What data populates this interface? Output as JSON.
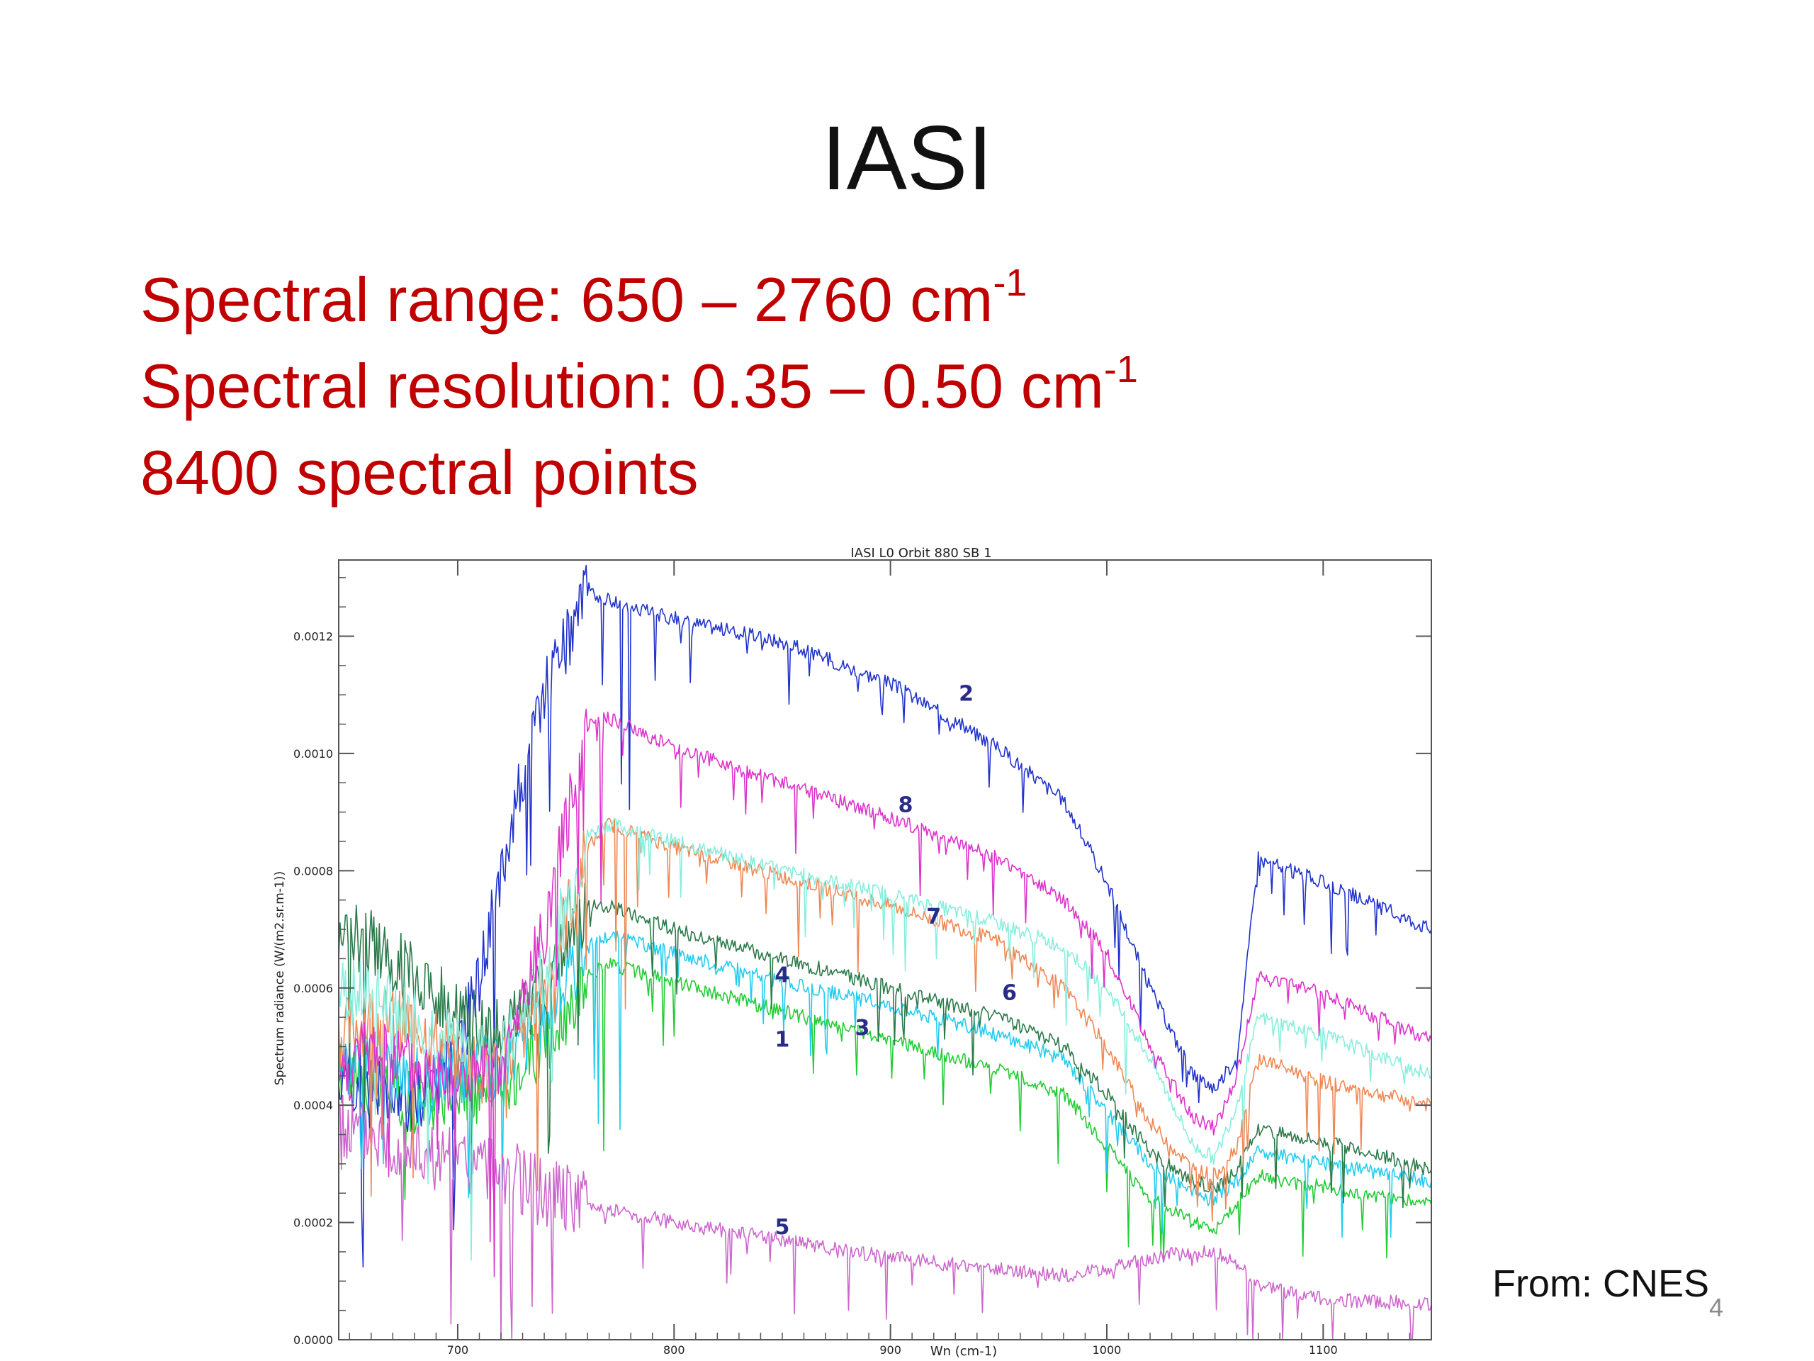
{
  "slide": {
    "title": "IASI",
    "bullets": [
      {
        "text": "Spectral range: 650 – 2760 cm",
        "sup": "-1"
      },
      {
        "text": "Spectral resolution: 0.35 – 0.50 cm",
        "sup": "-1"
      },
      {
        "text": "8400 spectral points",
        "sup": ""
      }
    ],
    "source": "From: CNES",
    "page_number": "4"
  },
  "chart_data": {
    "type": "line",
    "title": "IASI L0 Orbit 880 SB 1",
    "xlabel": "Wn (cm-1)",
    "ylabel": "Spectrum radiance (W/(m2.sr.m-1))",
    "xlim": [
      645,
      1150
    ],
    "ylim": [
      0,
      0.00133
    ],
    "x_ticks": [
      700,
      800,
      900,
      1000,
      1100
    ],
    "y_ticks": [
      0.0,
      0.0002,
      0.0004,
      0.0006,
      0.0008,
      0.001,
      0.0012
    ],
    "y_tick_labels": [
      "0.0000",
      "0.0002",
      "0.0004",
      "0.0006",
      "0.0008",
      "0.0010",
      "0.0012"
    ],
    "grid": false,
    "legend": "none",
    "series": [
      {
        "name": "1",
        "color": "#22cc33",
        "label_x": 850,
        "label_y": 0.0005,
        "points": [
          [
            645,
            0.00045
          ],
          [
            660,
            0.00044
          ],
          [
            680,
            0.00041
          ],
          [
            700,
            0.00042
          ],
          [
            720,
            0.00043
          ],
          [
            740,
            0.0005
          ],
          [
            760,
            0.00062
          ],
          [
            770,
            0.00064
          ],
          [
            800,
            0.00061
          ],
          [
            850,
            0.00056
          ],
          [
            900,
            0.00051
          ],
          [
            950,
            0.00046
          ],
          [
            980,
            0.00042
          ],
          [
            1000,
            0.00033
          ],
          [
            1020,
            0.00024
          ],
          [
            1040,
            0.0002
          ],
          [
            1050,
            0.00019
          ],
          [
            1060,
            0.00023
          ],
          [
            1070,
            0.00028
          ],
          [
            1100,
            0.00026
          ],
          [
            1150,
            0.00023
          ]
        ]
      },
      {
        "name": "2",
        "color": "#2233cc",
        "label_x": 935,
        "label_y": 0.00109,
        "points": [
          [
            645,
            0.00045
          ],
          [
            660,
            0.00044
          ],
          [
            680,
            0.00041
          ],
          [
            700,
            0.00048
          ],
          [
            710,
            0.00062
          ],
          [
            720,
            0.0008
          ],
          [
            740,
            0.0011
          ],
          [
            760,
            0.00128
          ],
          [
            770,
            0.00126
          ],
          [
            800,
            0.00123
          ],
          [
            850,
            0.00119
          ],
          [
            900,
            0.00112
          ],
          [
            950,
            0.00101
          ],
          [
            980,
            0.00092
          ],
          [
            1000,
            0.00078
          ],
          [
            1020,
            0.0006
          ],
          [
            1040,
            0.00045
          ],
          [
            1050,
            0.00043
          ],
          [
            1060,
            0.00048
          ],
          [
            1070,
            0.00082
          ],
          [
            1100,
            0.00078
          ],
          [
            1150,
            0.0007
          ]
        ]
      },
      {
        "name": "3",
        "color": "#22ccee",
        "label_x": 887,
        "label_y": 0.00052,
        "points": [
          [
            645,
            0.00048
          ],
          [
            660,
            0.00047
          ],
          [
            680,
            0.00044
          ],
          [
            700,
            0.00046
          ],
          [
            720,
            0.00047
          ],
          [
            740,
            0.00055
          ],
          [
            760,
            0.00067
          ],
          [
            770,
            0.00069
          ],
          [
            800,
            0.00066
          ],
          [
            850,
            0.00061
          ],
          [
            900,
            0.00057
          ],
          [
            950,
            0.00052
          ],
          [
            980,
            0.00048
          ],
          [
            1000,
            0.00039
          ],
          [
            1020,
            0.0003
          ],
          [
            1040,
            0.00025
          ],
          [
            1050,
            0.00024
          ],
          [
            1060,
            0.00027
          ],
          [
            1070,
            0.00032
          ],
          [
            1100,
            0.0003
          ],
          [
            1150,
            0.00027
          ]
        ]
      },
      {
        "name": "4",
        "color": "#2a7a4a",
        "label_x": 850,
        "label_y": 0.00061,
        "points": [
          [
            645,
            0.0007
          ],
          [
            660,
            0.00068
          ],
          [
            680,
            0.00062
          ],
          [
            700,
            0.00055
          ],
          [
            720,
            0.00052
          ],
          [
            740,
            0.0006
          ],
          [
            760,
            0.00074
          ],
          [
            770,
            0.00074
          ],
          [
            800,
            0.0007
          ],
          [
            850,
            0.00065
          ],
          [
            900,
            0.0006
          ],
          [
            950,
            0.00055
          ],
          [
            980,
            0.0005
          ],
          [
            1000,
            0.00042
          ],
          [
            1020,
            0.00032
          ],
          [
            1040,
            0.00027
          ],
          [
            1050,
            0.00026
          ],
          [
            1060,
            0.00029
          ],
          [
            1070,
            0.00036
          ],
          [
            1100,
            0.00034
          ],
          [
            1150,
            0.00029
          ]
        ]
      },
      {
        "name": "5",
        "color": "#cc66cc",
        "label_x": 850,
        "label_y": 0.00018,
        "points": [
          [
            645,
            0.00036
          ],
          [
            660,
            0.00035
          ],
          [
            680,
            0.00032
          ],
          [
            700,
            0.0003
          ],
          [
            720,
            0.00029
          ],
          [
            740,
            0.00025
          ],
          [
            760,
            0.00023
          ],
          [
            800,
            0.0002
          ],
          [
            850,
            0.00017
          ],
          [
            900,
            0.00014
          ],
          [
            950,
            0.00012
          ],
          [
            980,
            0.00011
          ],
          [
            1000,
            0.00012
          ],
          [
            1020,
            0.00014
          ],
          [
            1040,
            0.00015
          ],
          [
            1050,
            0.00015
          ],
          [
            1060,
            0.00013
          ],
          [
            1070,
            9e-05
          ],
          [
            1100,
            7e-05
          ],
          [
            1150,
            6e-05
          ]
        ]
      },
      {
        "name": "6",
        "color": "#ee8855",
        "label_x": 955,
        "label_y": 0.00058,
        "points": [
          [
            645,
            0.00052
          ],
          [
            660,
            0.00055
          ],
          [
            680,
            0.00054
          ],
          [
            700,
            0.00048
          ],
          [
            720,
            0.00045
          ],
          [
            740,
            0.0006
          ],
          [
            760,
            0.00084
          ],
          [
            770,
            0.00088
          ],
          [
            800,
            0.00084
          ],
          [
            850,
            0.00079
          ],
          [
            900,
            0.00074
          ],
          [
            950,
            0.00068
          ],
          [
            980,
            0.0006
          ],
          [
            1000,
            0.0005
          ],
          [
            1020,
            0.00037
          ],
          [
            1040,
            0.00029
          ],
          [
            1050,
            0.00028
          ],
          [
            1060,
            0.00033
          ],
          [
            1070,
            0.00048
          ],
          [
            1100,
            0.00044
          ],
          [
            1150,
            0.0004
          ]
        ]
      },
      {
        "name": "7",
        "color": "#88eedd",
        "label_x": 920,
        "label_y": 0.00071,
        "points": [
          [
            645,
            0.0006
          ],
          [
            660,
            0.00058
          ],
          [
            680,
            0.00056
          ],
          [
            700,
            0.0005
          ],
          [
            720,
            0.00048
          ],
          [
            740,
            0.00062
          ],
          [
            760,
            0.00086
          ],
          [
            770,
            0.00088
          ],
          [
            800,
            0.00085
          ],
          [
            850,
            0.0008
          ],
          [
            900,
            0.00076
          ],
          [
            950,
            0.00071
          ],
          [
            980,
            0.00067
          ],
          [
            1000,
            0.0006
          ],
          [
            1020,
            0.00048
          ],
          [
            1040,
            0.00033
          ],
          [
            1050,
            0.00031
          ],
          [
            1060,
            0.0004
          ],
          [
            1070,
            0.00055
          ],
          [
            1100,
            0.00052
          ],
          [
            1150,
            0.00045
          ]
        ]
      },
      {
        "name": "8",
        "color": "#dd33cc",
        "label_x": 907,
        "label_y": 0.0009,
        "points": [
          [
            645,
            0.00045
          ],
          [
            660,
            0.0005
          ],
          [
            680,
            0.00046
          ],
          [
            700,
            0.00044
          ],
          [
            720,
            0.00045
          ],
          [
            740,
            0.0007
          ],
          [
            760,
            0.00105
          ],
          [
            770,
            0.00106
          ],
          [
            800,
            0.00101
          ],
          [
            850,
            0.00095
          ],
          [
            900,
            0.00089
          ],
          [
            950,
            0.00082
          ],
          [
            980,
            0.00075
          ],
          [
            1000,
            0.00066
          ],
          [
            1020,
            0.0005
          ],
          [
            1040,
            0.00038
          ],
          [
            1050,
            0.00036
          ],
          [
            1060,
            0.00045
          ],
          [
            1070,
            0.00062
          ],
          [
            1100,
            0.00059
          ],
          [
            1150,
            0.00051
          ]
        ]
      }
    ]
  }
}
